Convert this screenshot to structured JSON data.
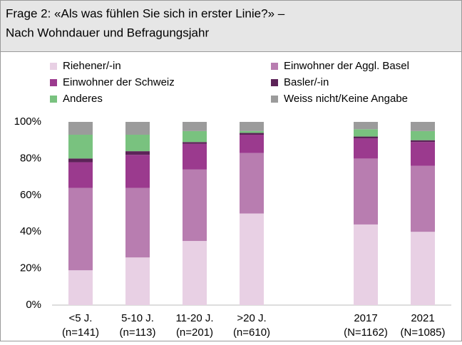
{
  "chart_data": {
    "type": "stacked_bar",
    "title": [
      "Frage 2: «Als was fühlen Sie sich in erster Linie?» –",
      "Nach Wohndauer und Befragungsjahr"
    ],
    "categories": [
      [
        "<5 J.",
        "(n=141)"
      ],
      [
        "5-10 J.",
        "(n=113)"
      ],
      [
        "11-20 J.",
        "(n=201)"
      ],
      [
        ">20 J.",
        "(n=610)"
      ],
      null,
      [
        "2017",
        "(N=1162)"
      ],
      [
        "2021",
        "(N=1085)"
      ]
    ],
    "series": [
      {
        "name": "Riehener/-in",
        "color": "#e8d0e4",
        "values": [
          19,
          26,
          35,
          50,
          null,
          44,
          40
        ]
      },
      {
        "name": "Einwohner der Aggl. Basel",
        "color": "#b87db0",
        "values": [
          45,
          38,
          39,
          33,
          null,
          36,
          36
        ]
      },
      {
        "name": "Einwohner der Schweiz",
        "color": "#9b3a8e",
        "values": [
          14,
          18,
          14,
          10,
          null,
          11,
          13
        ]
      },
      {
        "name": "Basler/-in",
        "color": "#5c2358",
        "values": [
          2,
          2,
          1,
          1,
          null,
          1,
          1
        ]
      },
      {
        "name": "Anderes",
        "color": "#79c27f",
        "values": [
          13,
          9,
          6,
          1,
          null,
          4,
          5
        ]
      },
      {
        "name": "Weiss nicht/Keine Angabe",
        "color": "#9b9b9b",
        "values": [
          7,
          7,
          5,
          5,
          null,
          4,
          5
        ]
      }
    ],
    "ylim": [
      0,
      100
    ],
    "yticks": [
      {
        "value": 0,
        "label": "0%"
      },
      {
        "value": 20,
        "label": "20%"
      },
      {
        "value": 40,
        "label": "40%"
      },
      {
        "value": 60,
        "label": "60%"
      },
      {
        "value": 80,
        "label": "80%"
      },
      {
        "value": 100,
        "label": "100%"
      }
    ],
    "grid": false
  }
}
